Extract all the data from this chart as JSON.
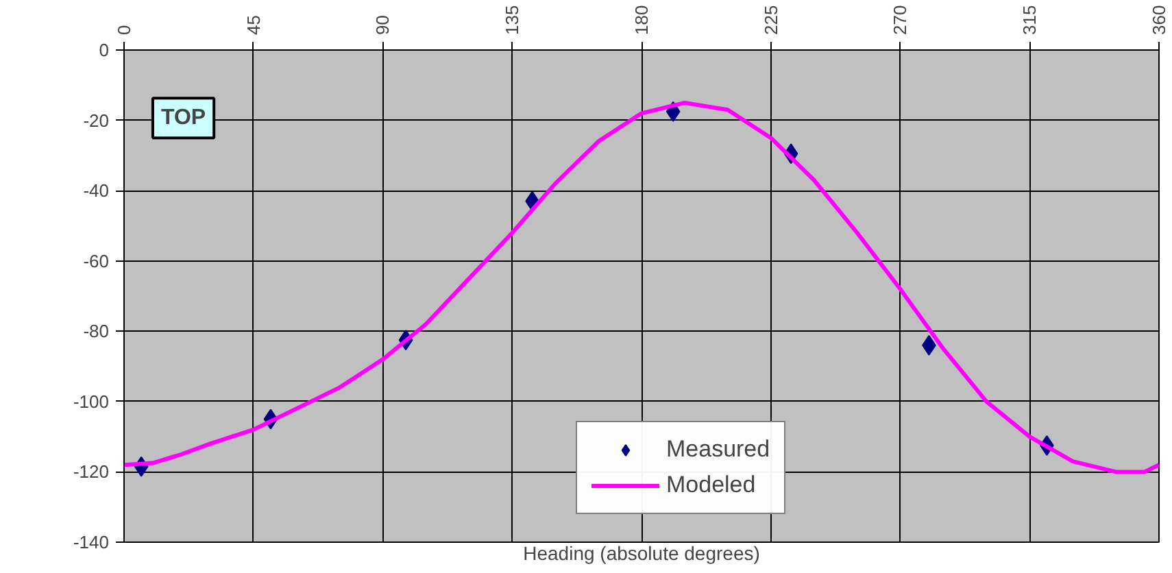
{
  "chart_data": {
    "type": "line",
    "xlabel": "Heading (absolute degrees)",
    "annotations": [
      "TOP"
    ],
    "xlim": [
      0,
      360
    ],
    "xticks": [
      0,
      45,
      90,
      135,
      180,
      225,
      270,
      315,
      360
    ],
    "ylim": [
      -140,
      0
    ],
    "yticks": [
      -140,
      -120,
      -100,
      -80,
      -60,
      -40,
      -20,
      0
    ],
    "grid": true,
    "legend": "bottom",
    "series": [
      {
        "name": "Measured",
        "type": "scatter",
        "marker": "diamond",
        "color": "#000080",
        "x": [
          6,
          51,
          98,
          142,
          191,
          232,
          280,
          321
        ],
        "values": [
          -118.5,
          -105,
          -82.5,
          -43,
          -17.5,
          -29.5,
          -84,
          -112.5
        ]
      },
      {
        "name": "Modeled",
        "marker": "none",
        "line_style": "solid",
        "color": "#ff00ff",
        "x": [
          0,
          10,
          20,
          30,
          45,
          60,
          75,
          90,
          105,
          120,
          135,
          150,
          165,
          180,
          195,
          210,
          225,
          240,
          255,
          270,
          285,
          300,
          315,
          330,
          345,
          355,
          360
        ],
        "values": [
          -118,
          -117.5,
          -115,
          -112,
          -108,
          -102,
          -96,
          -88,
          -78,
          -65,
          -52,
          -38,
          -26,
          -18,
          -15,
          -17,
          -25,
          -37,
          -52,
          -68,
          -85,
          -100,
          -110,
          -117,
          -120,
          -120,
          -118
        ]
      }
    ]
  }
}
